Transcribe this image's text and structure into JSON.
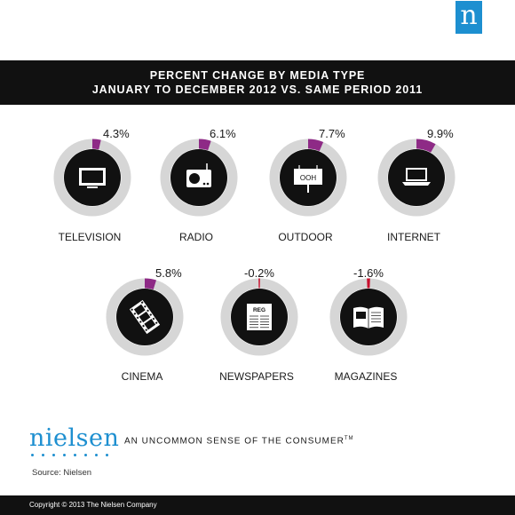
{
  "brand": {
    "badge_letter": "n",
    "wordmark": "nielsen",
    "tagline": "AN UNCOMMON SENSE OF THE CONSUMER",
    "tagline_mark": "TM",
    "accent": "#1d8fd0"
  },
  "source": "Source: Nielsen",
  "copyright": "Copyright © 2013 The Nielsen Company",
  "colors": {
    "ring_track": "#d6d6d6",
    "positive_arc": "#8e2a86",
    "negative_arc": "#c8102e",
    "icon_disc": "#111111"
  },
  "chart_data": {
    "type": "pie",
    "title": "PERCENT CHANGE BY MEDIA TYPE",
    "subtitle": "JANUARY TO DECEMBER 2012 VS. SAME PERIOD 2011",
    "categories": [
      "TELEVISION",
      "RADIO",
      "OUTDOOR",
      "INTERNET",
      "CINEMA",
      "NEWSPAPERS",
      "MAGAZINES"
    ],
    "values": [
      4.3,
      6.1,
      7.7,
      9.9,
      5.8,
      -0.2,
      -1.6
    ],
    "labels": [
      "4.3%",
      "6.1%",
      "7.7%",
      "9.9%",
      "5.8%",
      "-0.2%",
      "-1.6%"
    ],
    "icons": [
      "tv-icon",
      "radio-icon",
      "billboard-icon",
      "laptop-icon",
      "film-icon",
      "newspaper-icon",
      "magazine-icon"
    ],
    "icon_texts": {
      "billboard": "OOH",
      "newspaper": "REG"
    },
    "unit": "%"
  }
}
